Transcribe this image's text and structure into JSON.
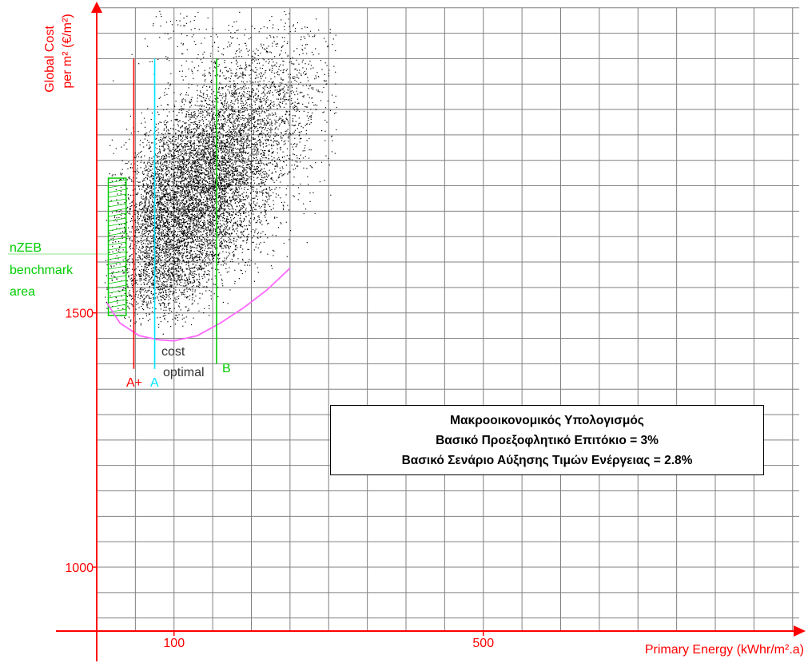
{
  "chart_data": {
    "type": "scatter",
    "title": "",
    "xlabel": "Primary Energy (kWhr/m².a)",
    "ylabel_line1": "Global Cost",
    "ylabel_line2": "per m² (€/m²)",
    "x_ticks": [
      {
        "value": 100,
        "label": "100"
      },
      {
        "value": 500,
        "label": "500"
      }
    ],
    "y_ticks": [
      {
        "value": 1000,
        "label": "1000"
      },
      {
        "value": 1500,
        "label": "1500"
      }
    ],
    "xlim": [
      -20,
      880
    ],
    "ylim": [
      870,
      2090
    ],
    "grid": true,
    "scatter_clusters": [
      {
        "cx": 110,
        "cy": 1740,
        "sx": 45,
        "sy": 85,
        "n": 3500,
        "tilt": 1.6
      },
      {
        "cx": 160,
        "cy": 1790,
        "sx": 45,
        "sy": 95,
        "n": 2200,
        "tilt": 1.6
      },
      {
        "cx": 130,
        "cy": 1650,
        "sx": 50,
        "sy": 60,
        "n": 1400,
        "tilt": 1.4
      },
      {
        "cx": 200,
        "cy": 1870,
        "sx": 45,
        "sy": 90,
        "n": 1000,
        "tilt": 1.5
      },
      {
        "cx": 75,
        "cy": 1680,
        "sx": 14,
        "sy": 70,
        "n": 500,
        "tilt": 0.3
      },
      {
        "cx": 90,
        "cy": 1560,
        "sx": 25,
        "sy": 30,
        "n": 400,
        "tilt": 0.5
      },
      {
        "cx": 240,
        "cy": 1920,
        "sx": 50,
        "sy": 90,
        "n": 350,
        "tilt": 1.2
      },
      {
        "cx": 110,
        "cy": 2050,
        "sx": 35,
        "sy": 40,
        "n": 90,
        "tilt": 0.4
      }
    ],
    "vertical_markers": [
      {
        "label": "A+",
        "x": 48,
        "y_top": 2000,
        "y_bottom": 1390,
        "color": "#ff0000"
      },
      {
        "label": "A",
        "x": 75,
        "y_top": 2000,
        "y_bottom": 1390,
        "color": "#00e5ff"
      },
      {
        "label": "B",
        "x": 155,
        "y_top": 2000,
        "y_bottom": 1400,
        "color": "#00cc00"
      }
    ],
    "cost_optimal_curve": {
      "color": "#ff66ff",
      "points": [
        [
          13,
          1520
        ],
        [
          30,
          1480
        ],
        [
          55,
          1455
        ],
        [
          80,
          1447
        ],
        [
          100,
          1445
        ],
        [
          130,
          1455
        ],
        [
          160,
          1480
        ],
        [
          190,
          1510
        ],
        [
          220,
          1545
        ],
        [
          250,
          1588
        ]
      ]
    },
    "nzeb_area": {
      "label_lines": [
        "nZEB",
        "benchmark",
        "area"
      ],
      "x_range": [
        15,
        38
      ],
      "y_range": [
        1495,
        1765
      ],
      "color": "#00cc00"
    },
    "cost_optimal_label": [
      "cost",
      "optimal"
    ],
    "info_box": {
      "lines": [
        "Μακροοικονομικός Υπολογισμός",
        "Βασικό Προεξοφλητικό Επιτόκιο = 3%",
        "Βασικό Σενάριο Αύξησης Τιμών Ενέργειας = 2.8%"
      ]
    },
    "colors": {
      "axis": "#ff0000",
      "grid": "#808080",
      "points": "#000000",
      "nzeb": "#00cc00",
      "a_plus": "#ff0000",
      "a": "#00e5ff",
      "b": "#00cc00",
      "curve": "#ff66ff"
    }
  }
}
